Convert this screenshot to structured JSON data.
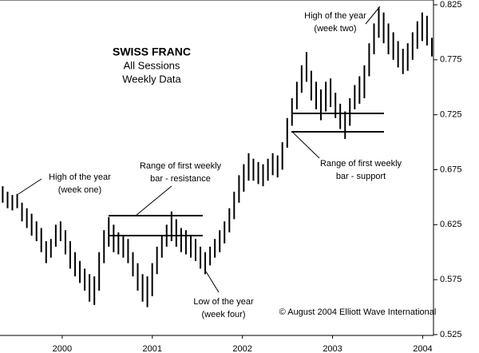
{
  "chart_data": {
    "type": "hilo",
    "title": "SWISS FRANC",
    "subtitle": [
      "All Sessions",
      "Weekly Data"
    ],
    "source": "© August 2004 Elliott Wave International",
    "annotations": [
      {
        "lines": [
          "High of the year",
          "(week one)"
        ]
      },
      {
        "lines": [
          "Range of first weekly",
          "bar - resistance"
        ]
      },
      {
        "lines": [
          "Low of the year",
          "(week four)"
        ]
      },
      {
        "lines": [
          "Range of first weekly",
          "bar - support"
        ]
      },
      {
        "lines": [
          "High of the year",
          "(week two)"
        ]
      }
    ],
    "xlim": [
      1999.81,
      2004.62
    ],
    "xticks": [
      {
        "value": 2000.5,
        "label": "2000"
      },
      {
        "value": 2001.5,
        "label": "2001"
      },
      {
        "value": 2002.5,
        "label": "2002"
      },
      {
        "value": 2003.5,
        "label": "2003"
      },
      {
        "value": 2004.5,
        "label": "2004"
      }
    ],
    "ylim": [
      0.525,
      0.825
    ],
    "yticks": [
      0.525,
      0.575,
      0.625,
      0.675,
      0.725,
      0.775,
      0.825
    ],
    "x": [
      1999.84,
      1999.894,
      1999.947,
      2000.001,
      2000.054,
      2000.108,
      2000.161,
      2000.215,
      2000.268,
      2000.322,
      2000.375,
      2000.429,
      2000.482,
      2000.536,
      2000.589,
      2000.643,
      2000.696,
      2000.75,
      2000.803,
      2000.857,
      2000.91,
      2000.964,
      2001.017,
      2001.071,
      2001.124,
      2001.178,
      2001.231,
      2001.285,
      2001.338,
      2001.392,
      2001.445,
      2001.499,
      2001.552,
      2001.606,
      2001.659,
      2001.713,
      2001.766,
      2001.82,
      2001.873,
      2001.927,
      2001.98,
      2002.034,
      2002.087,
      2002.141,
      2002.194,
      2002.248,
      2002.301,
      2002.355,
      2002.408,
      2002.462,
      2002.515,
      2002.569,
      2002.622,
      2002.676,
      2002.729,
      2002.783,
      2002.836,
      2002.89,
      2002.943,
      2002.997,
      2003.05,
      2003.104,
      2003.157,
      2003.211,
      2003.264,
      2003.318,
      2003.371,
      2003.425,
      2003.478,
      2003.532,
      2003.585,
      2003.639,
      2003.692,
      2003.746,
      2003.799,
      2003.853,
      2003.906,
      2003.96,
      2004.013,
      2004.067,
      2004.12,
      2004.174,
      2004.227,
      2004.281,
      2004.334,
      2004.388,
      2004.441,
      2004.495,
      2004.548,
      2004.602
    ],
    "series": [
      {
        "color": "#000000",
        "high": [
          0.66,
          0.655,
          0.652,
          0.653,
          0.645,
          0.64,
          0.635,
          0.628,
          0.622,
          0.61,
          0.612,
          0.625,
          0.628,
          0.62,
          0.61,
          0.6,
          0.592,
          0.585,
          0.58,
          0.578,
          0.6,
          0.62,
          0.632,
          0.625,
          0.618,
          0.615,
          0.612,
          0.6,
          0.59,
          0.58,
          0.578,
          0.59,
          0.605,
          0.615,
          0.625,
          0.637,
          0.63,
          0.622,
          0.62,
          0.615,
          0.612,
          0.605,
          0.6,
          0.605,
          0.612,
          0.62,
          0.628,
          0.64,
          0.655,
          0.67,
          0.68,
          0.69,
          0.685,
          0.682,
          0.68,
          0.685,
          0.69,
          0.688,
          0.7,
          0.722,
          0.74,
          0.755,
          0.77,
          0.782,
          0.765,
          0.755,
          0.748,
          0.755,
          0.758,
          0.745,
          0.735,
          0.728,
          0.74,
          0.752,
          0.76,
          0.77,
          0.79,
          0.808,
          0.823,
          0.818,
          0.808,
          0.8,
          0.792,
          0.785,
          0.79,
          0.8,
          0.81,
          0.818,
          0.815,
          0.795
        ],
        "low": [
          0.645,
          0.64,
          0.638,
          0.64,
          0.628,
          0.622,
          0.615,
          0.61,
          0.6,
          0.59,
          0.595,
          0.605,
          0.61,
          0.598,
          0.585,
          0.578,
          0.572,
          0.565,
          0.555,
          0.552,
          0.565,
          0.59,
          0.605,
          0.6,
          0.598,
          0.595,
          0.59,
          0.578,
          0.565,
          0.555,
          0.55,
          0.56,
          0.58,
          0.595,
          0.605,
          0.61,
          0.605,
          0.6,
          0.598,
          0.595,
          0.592,
          0.585,
          0.58,
          0.588,
          0.595,
          0.6,
          0.608,
          0.618,
          0.63,
          0.645,
          0.655,
          0.665,
          0.665,
          0.662,
          0.66,
          0.665,
          0.67,
          0.668,
          0.675,
          0.695,
          0.715,
          0.73,
          0.745,
          0.755,
          0.738,
          0.73,
          0.72,
          0.728,
          0.732,
          0.722,
          0.712,
          0.703,
          0.715,
          0.73,
          0.735,
          0.74,
          0.76,
          0.78,
          0.795,
          0.79,
          0.78,
          0.775,
          0.768,
          0.762,
          0.765,
          0.775,
          0.785,
          0.792,
          0.788,
          0.778
        ]
      }
    ]
  }
}
